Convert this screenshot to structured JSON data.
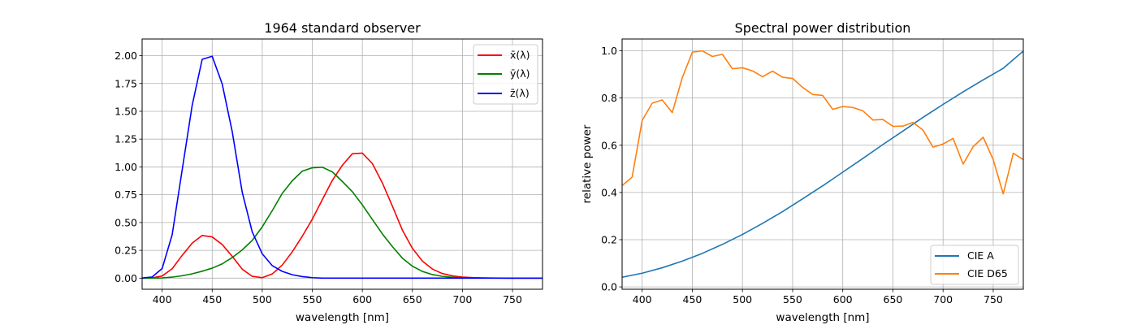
{
  "chart_data": [
    {
      "type": "line",
      "title": "1964 standard observer",
      "xlabel": "wavelength [nm]",
      "ylabel": "",
      "xlim": [
        380,
        780
      ],
      "ylim": [
        -0.1,
        2.15
      ],
      "xticks": [
        "400",
        "450",
        "500",
        "550",
        "600",
        "650",
        "700",
        "750"
      ],
      "yticks": [
        "0.00",
        "0.25",
        "0.50",
        "0.75",
        "1.00",
        "1.25",
        "1.50",
        "1.75",
        "2.00"
      ],
      "grid": true,
      "legend_position": "top-right",
      "series": [
        {
          "name": "x̄(λ)",
          "color": "#ff0000",
          "x": [
            380,
            390,
            400,
            410,
            420,
            430,
            440,
            450,
            460,
            470,
            480,
            490,
            500,
            510,
            520,
            530,
            540,
            550,
            560,
            570,
            580,
            590,
            600,
            610,
            620,
            630,
            640,
            650,
            660,
            670,
            680,
            690,
            700,
            710,
            720,
            730,
            740,
            750,
            760,
            770,
            780
          ],
          "y": [
            0.0002,
            0.0024,
            0.0191,
            0.0847,
            0.2045,
            0.3147,
            0.3837,
            0.3707,
            0.3023,
            0.1956,
            0.0805,
            0.0162,
            0.0038,
            0.0375,
            0.1177,
            0.2365,
            0.3768,
            0.5298,
            0.7052,
            0.8787,
            1.0142,
            1.1185,
            1.124,
            1.0305,
            0.8563,
            0.6475,
            0.4316,
            0.2683,
            0.1526,
            0.0813,
            0.0409,
            0.0199,
            0.0096,
            0.0046,
            0.0022,
            0.001,
            0.0005,
            0.0003,
            0.0001,
            0.0001,
            0.0
          ]
        },
        {
          "name": "ȳ(λ)",
          "color": "#008000",
          "x": [
            380,
            390,
            400,
            410,
            420,
            430,
            440,
            450,
            460,
            470,
            480,
            490,
            500,
            510,
            520,
            530,
            540,
            550,
            560,
            570,
            580,
            590,
            600,
            610,
            620,
            630,
            640,
            650,
            660,
            670,
            680,
            690,
            700,
            710,
            720,
            730,
            740,
            750,
            760,
            770,
            780
          ],
          "y": [
            0.0,
            0.0003,
            0.002,
            0.0088,
            0.0214,
            0.0387,
            0.0621,
            0.0895,
            0.1282,
            0.1852,
            0.2536,
            0.3391,
            0.4608,
            0.6067,
            0.7618,
            0.8752,
            0.962,
            0.9918,
            0.9973,
            0.9555,
            0.8689,
            0.7774,
            0.6583,
            0.528,
            0.3981,
            0.2835,
            0.1798,
            0.1076,
            0.0603,
            0.0318,
            0.0159,
            0.0077,
            0.0037,
            0.0018,
            0.0008,
            0.0004,
            0.0002,
            0.0001,
            0.0,
            0.0,
            0.0
          ]
        },
        {
          "name": "z̄(λ)",
          "color": "#0000ff",
          "x": [
            380,
            390,
            400,
            410,
            420,
            430,
            440,
            450,
            460,
            470,
            480,
            490,
            500,
            510,
            520,
            530,
            540,
            550,
            560,
            570,
            580,
            590,
            600,
            610,
            620,
            630,
            640,
            650,
            660,
            670,
            680,
            690,
            700,
            710,
            720,
            730,
            740,
            750,
            760,
            770,
            780
          ],
          "y": [
            0.0007,
            0.0105,
            0.086,
            0.3894,
            0.9725,
            1.5535,
            1.9673,
            1.9948,
            1.7454,
            1.3176,
            0.7721,
            0.4153,
            0.2185,
            0.112,
            0.0607,
            0.0305,
            0.0137,
            0.004,
            0.0,
            0.0,
            0.0,
            0.0,
            0.0,
            0.0,
            0.0,
            0.0,
            0.0,
            0.0,
            0.0,
            0.0,
            0.0,
            0.0,
            0.0,
            0.0,
            0.0,
            0.0,
            0.0,
            0.0,
            0.0,
            0.0,
            0.0
          ]
        }
      ]
    },
    {
      "type": "line",
      "title": "Spectral power distribution",
      "xlabel": "wavelength [nm]",
      "ylabel": "relative power",
      "xlim": [
        380,
        780
      ],
      "ylim": [
        -0.01,
        1.05
      ],
      "xticks": [
        "400",
        "450",
        "500",
        "550",
        "600",
        "650",
        "700",
        "750"
      ],
      "yticks": [
        "0.0",
        "0.2",
        "0.4",
        "0.6",
        "0.8",
        "1.0"
      ],
      "grid": true,
      "legend_position": "bottom-right",
      "series": [
        {
          "name": "CIE A",
          "color": "#1f77b4",
          "x": [
            380,
            400,
            420,
            440,
            460,
            480,
            500,
            520,
            540,
            560,
            580,
            600,
            620,
            640,
            660,
            680,
            700,
            720,
            740,
            760,
            780
          ],
          "y": [
            0.041,
            0.058,
            0.081,
            0.109,
            0.142,
            0.18,
            0.222,
            0.269,
            0.319,
            0.373,
            0.428,
            0.486,
            0.544,
            0.603,
            0.66,
            0.718,
            0.773,
            0.826,
            0.877,
            0.926,
            0.999
          ]
        },
        {
          "name": "CIE D65",
          "color": "#ff7f0e",
          "x": [
            380,
            390,
            400,
            410,
            420,
            430,
            440,
            450,
            460,
            470,
            480,
            490,
            500,
            510,
            520,
            530,
            540,
            550,
            560,
            570,
            580,
            590,
            600,
            610,
            620,
            630,
            640,
            650,
            660,
            670,
            680,
            690,
            700,
            710,
            720,
            730,
            740,
            750,
            760,
            770,
            780
          ],
          "y": [
            0.429,
            0.465,
            0.705,
            0.778,
            0.792,
            0.738,
            0.886,
            0.994,
            1.0,
            0.976,
            0.985,
            0.924,
            0.928,
            0.915,
            0.89,
            0.914,
            0.888,
            0.883,
            0.845,
            0.815,
            0.811,
            0.752,
            0.764,
            0.76,
            0.746,
            0.707,
            0.709,
            0.68,
            0.681,
            0.697,
            0.664,
            0.592,
            0.605,
            0.629,
            0.52,
            0.594,
            0.634,
            0.539,
            0.394,
            0.566,
            0.539
          ]
        }
      ]
    }
  ]
}
